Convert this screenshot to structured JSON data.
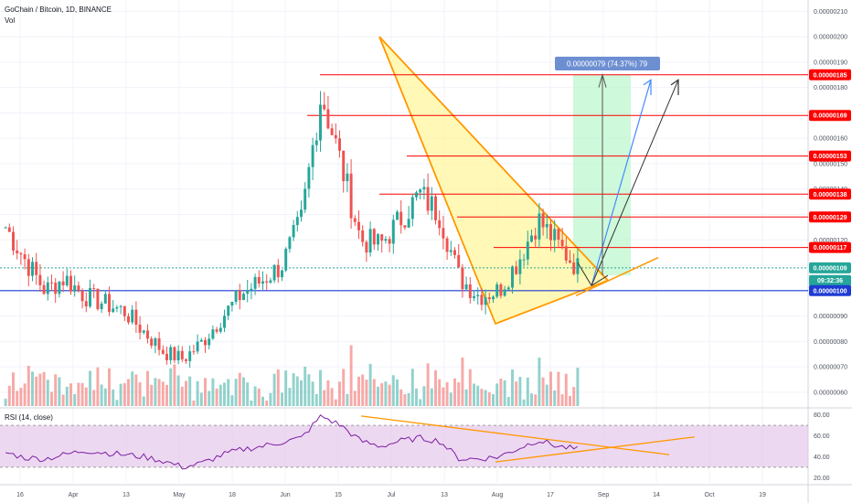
{
  "header": {
    "title": "GoChain / Bitcoin, 1D, BINANCE",
    "volume_label": "Vol",
    "rsi_label": "RSI (14, close)"
  },
  "colors": {
    "up": "#26a69a",
    "down": "#ef5350",
    "resistance": "#ff0000",
    "support": "#2962ff",
    "triangle_stroke": "#ff9800",
    "triangle_fill": "#fff59d",
    "target_zone": "#b9f6ca",
    "rsi_line": "#7b1fa2",
    "rsi_band": "#e1bee7"
  },
  "chart_data": [
    {
      "type": "candlestick",
      "title": "GoChain / Bitcoin, 1D, BINANCE",
      "y_axis_ticks": [
        "0.00000210",
        "0.00000200",
        "0.00000190",
        "0.00000180",
        "0.00000170",
        "0.00000160",
        "0.00000150",
        "0.00000140",
        "0.00000130",
        "0.00000120",
        "0.00000110",
        "0.00000100",
        "0.00000090",
        "0.00000080",
        "0.00000070",
        "0.00000060"
      ],
      "x_axis_ticks": [
        "16",
        "Apr",
        "13",
        "May",
        "18",
        "Jun",
        "15",
        "Jul",
        "13",
        "Aug",
        "17",
        "Sep",
        "14",
        "Oct",
        "19"
      ],
      "ylim": [
        5.6e-07,
        2.13e-06
      ],
      "price_tags": [
        {
          "label": "0.00000185",
          "value": 1.85e-06,
          "color": "#ff0000"
        },
        {
          "label": "0.00000169",
          "value": 1.69e-06,
          "color": "#ff0000"
        },
        {
          "label": "0.00000153",
          "value": 1.53e-06,
          "color": "#ff0000"
        },
        {
          "label": "0.00000138",
          "value": 1.38e-06,
          "color": "#ff0000"
        },
        {
          "label": "0.00000129",
          "value": 1.29e-06,
          "color": "#ff0000"
        },
        {
          "label": "0.00000117",
          "value": 1.17e-06,
          "color": "#ff0000"
        },
        {
          "label": "0.00000109",
          "value": 1.09e-06,
          "color": "#26a69a"
        },
        {
          "label": "09:32:36",
          "value": 1.04e-06,
          "color": "#26a69a"
        },
        {
          "label": "0.00000100",
          "value": 1e-06,
          "color": "#1e3bd3"
        }
      ],
      "measure_label": "0.00000079 (74.37%) 79",
      "closes_key": [
        1.25e-06,
        1.12e-06,
        1e-06,
        1.05e-06,
        9.8e-07,
        9.5e-07,
        9.2e-07,
        8.4e-07,
        7.6e-07,
        7.3e-07,
        8e-07,
        9e-07,
        9.9e-07,
        1.04e-06,
        1.1e-06,
        1.28e-06,
        1.78e-06,
        1.5e-06,
        1.2e-06,
        1.18e-06,
        1.28e-06,
        1.38e-06,
        1.3e-06,
        1.05e-06,
        9.8e-07,
        1e-06,
        1.12e-06,
        1.28e-06,
        1.18e-06,
        1.09e-06
      ]
    },
    {
      "type": "line",
      "title": "RSI (14, close)",
      "y_axis_ticks": [
        "80.00",
        "60.00",
        "40.00",
        "20.00"
      ],
      "ylim": [
        15,
        85
      ],
      "values": [
        44,
        39,
        38,
        42,
        46,
        44,
        42,
        40,
        36,
        30,
        34,
        42,
        47,
        50,
        54,
        58,
        79,
        70,
        55,
        50,
        55,
        58,
        55,
        38,
        38,
        40,
        48,
        56,
        50,
        47
      ]
    }
  ]
}
